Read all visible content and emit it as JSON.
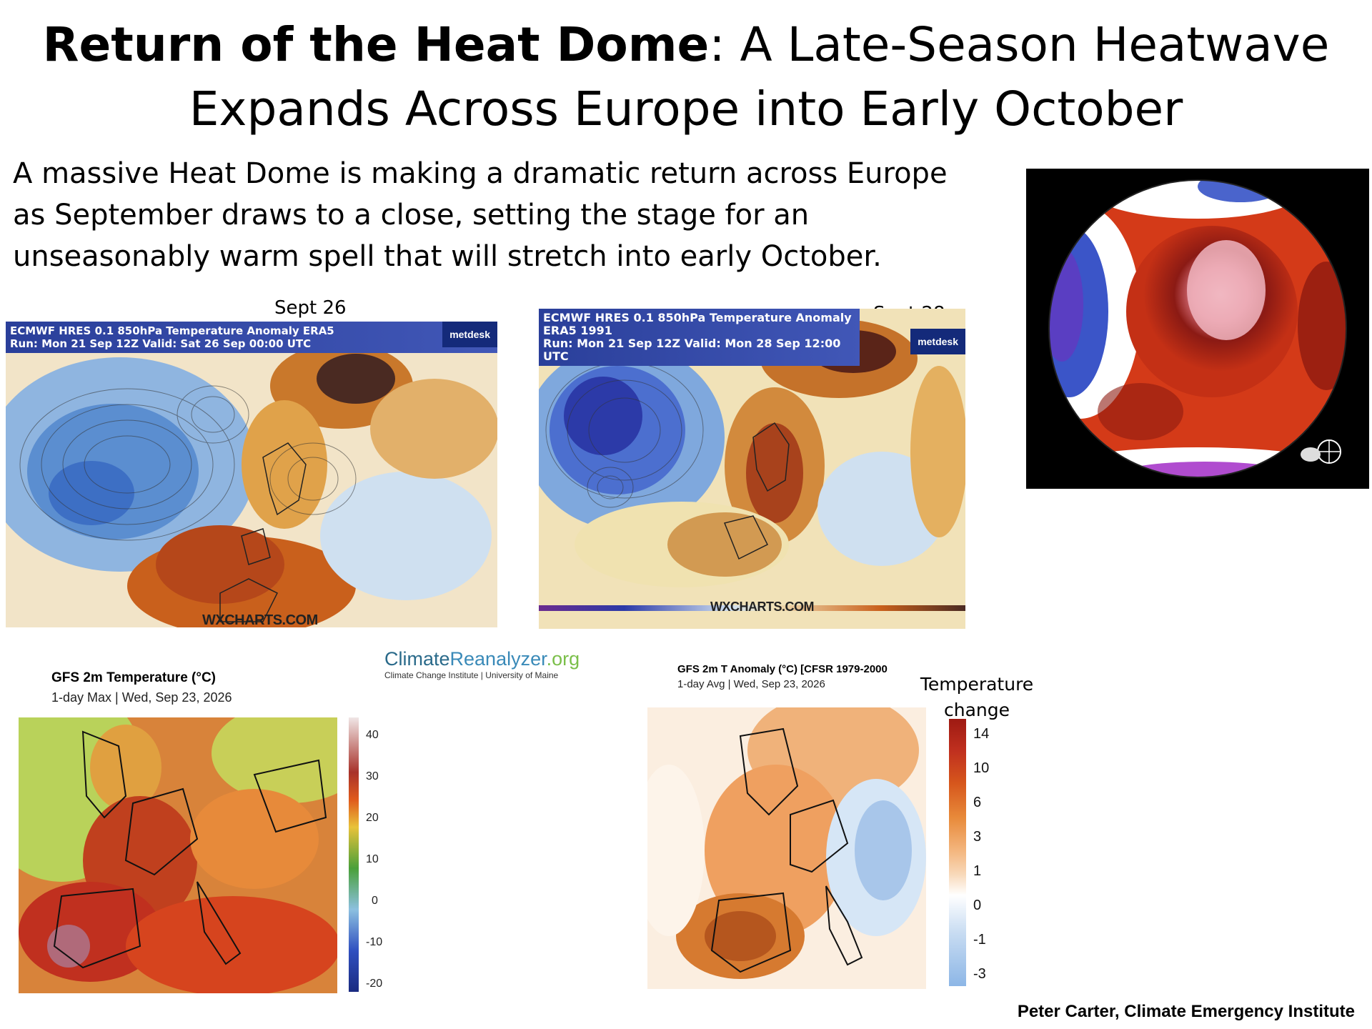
{
  "title": {
    "bold": "Return of the Heat Dome",
    "rest": ": A Late-Season Heatwave",
    "line2": "Expands Across Europe into Early October"
  },
  "intro": "A massive Heat Dome is making a dramatic return across Europe as September draws to a close, setting the stage for an unseasonably warm spell that will stretch into early October.",
  "map1": {
    "date_label": "Sept 26",
    "header_line1": "ECMWF HRES 0.1 850hPa Temperature Anomaly ERA5",
    "header_line2": "Run: Mon 21 Sep 12Z Valid: Sat 26 Sep 00:00 UTC",
    "brand": "metdesk",
    "watermark": "WXCHARTS.COM"
  },
  "map2": {
    "date_label": "Sept 28",
    "header_line1": "ECMWF HRES 0.1 850hPa Temperature Anomaly ERA5 1991",
    "header_line2": "Run: Mon 21 Sep 12Z Valid: Mon 28 Sep 12:00 UTC",
    "brand": "metdesk",
    "watermark": "WXCHARTS.COM"
  },
  "climate_reanalyzer": {
    "logo_part1": "Climate",
    "logo_part2": "Reanalyzer",
    "logo_part3": ".org",
    "sub": "Climate Change Institute | University of Maine"
  },
  "gfs_temp": {
    "title": "GFS 2m Temperature (°C)",
    "subtitle": "1-day Max | Wed, Sep 23, 2026",
    "colorbar_ticks": [
      "40",
      "30",
      "20",
      "10",
      "0",
      "-10",
      "-20"
    ]
  },
  "gfs_anom": {
    "title": "GFS 2m T Anomaly (°C) [CFSR 1979-2000",
    "subtitle": "1-day Avg | Wed, Sep 23, 2026",
    "legend_title_line1": "Temperature",
    "legend_title_line2": "change",
    "legend_ticks": [
      "14",
      "10",
      "6",
      "3",
      "1",
      "0",
      "-1",
      "-3"
    ]
  },
  "credit": "Peter Carter, Climate Emergency Institute",
  "colors": {
    "hot": "#c0301f",
    "warm": "#e8833a",
    "cold": "#3d6fc4",
    "deep_cold": "#2c3aa8"
  }
}
